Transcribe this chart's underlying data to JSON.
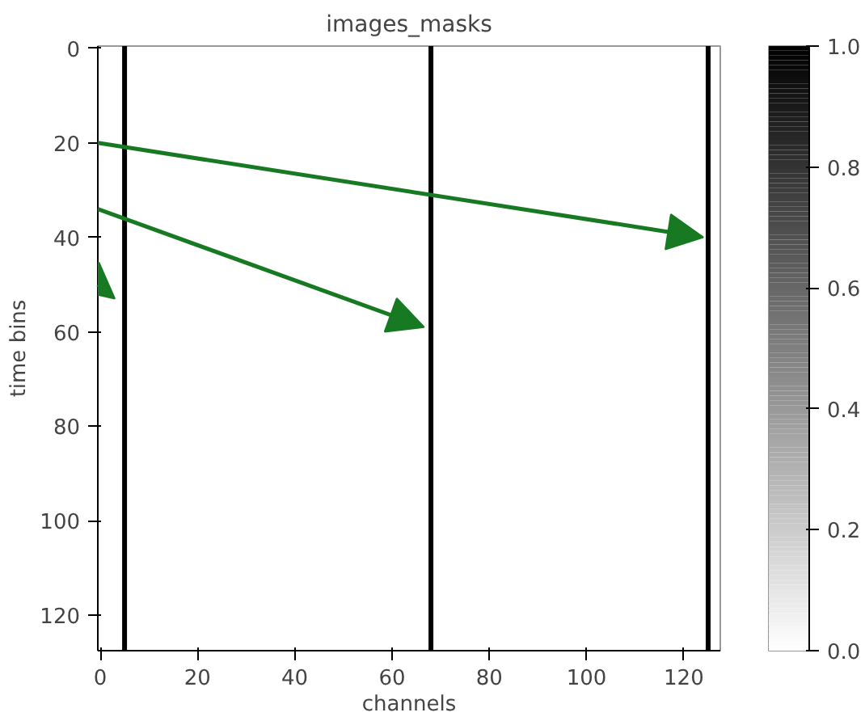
{
  "chart_data": {
    "type": "heatmap",
    "title": "images_masks",
    "xlabel": "channels",
    "ylabel": "time bins",
    "xlim": [
      -0.5,
      127.5
    ],
    "ylim": [
      127.5,
      -0.5
    ],
    "xticks": [
      0,
      20,
      40,
      60,
      80,
      100,
      120
    ],
    "yticks": [
      0,
      20,
      40,
      60,
      80,
      100,
      120
    ],
    "clim": [
      0,
      1
    ],
    "cticks": [
      {
        "value": 0,
        "label": "0.0"
      },
      0.2,
      0.4,
      0.6,
      0.8,
      {
        "value": 1,
        "label": "1.0"
      }
    ],
    "ref_lines": [
      {
        "axis": "x",
        "value": 5,
        "color": "#000000"
      },
      {
        "axis": "x",
        "value": 68,
        "color": "#000000"
      },
      {
        "axis": "x",
        "value": 125,
        "color": "#000000"
      }
    ],
    "grid": false
  }
}
